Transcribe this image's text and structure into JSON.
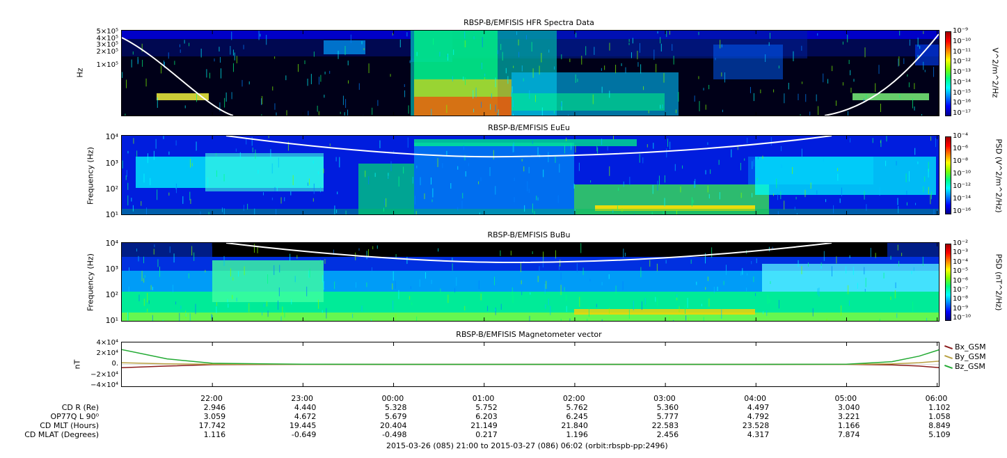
{
  "panels": [
    {
      "title": "RBSP-B/EMFISIS  HFR Spectra Data",
      "ylabel": "Hz",
      "yticks": [
        "5×10⁵",
        "4×10⁵",
        "3×10⁵",
        "2×10⁵",
        "1×10⁵"
      ],
      "colorbar_label": "V^2/m^2/Hz",
      "colorbar_ticks": [
        "10⁻⁹",
        "10⁻¹⁰",
        "10⁻¹¹",
        "10⁻¹²",
        "10⁻¹³",
        "10⁻¹⁴",
        "10⁻¹⁵",
        "10⁻¹⁶",
        "10⁻¹⁷"
      ]
    },
    {
      "title": "RBSP-B/EMFISIS  EuEu",
      "ylabel": "Frequency (Hz)",
      "yticks": [
        "10⁴",
        "10³",
        "10²",
        "10¹"
      ],
      "colorbar_label": "PSD (V^2/m^2/Hz)",
      "colorbar_ticks": [
        "10⁻⁴",
        "10⁻⁶",
        "10⁻⁸",
        "10⁻¹⁰",
        "10⁻¹²",
        "10⁻¹⁴",
        "10⁻¹⁶"
      ]
    },
    {
      "title": "RBSP-B/EMFISIS  BuBu",
      "ylabel": "Frequency (Hz)",
      "yticks": [
        "10⁴",
        "10³",
        "10²",
        "10¹"
      ],
      "colorbar_label": "PSD (nT^2/Hz)",
      "colorbar_ticks": [
        "10⁻²",
        "10⁻³",
        "10⁻⁴",
        "10⁻⁵",
        "10⁻⁶",
        "10⁻⁷",
        "10⁻⁸",
        "10⁻⁹",
        "10⁻¹⁰"
      ]
    },
    {
      "title": "RBSP-B/EMFISIS  Magnetometer vector",
      "ylabel": "nT",
      "yticks": [
        "4×10⁴",
        "2×10⁴",
        "0.",
        "−2×10⁴",
        "−4×10⁴"
      ]
    }
  ],
  "legend": [
    {
      "label": "Bx_GSM",
      "color": "#8b1a1a"
    },
    {
      "label": "By_GSM",
      "color": "#b8a040"
    },
    {
      "label": "Bz_GSM",
      "color": "#22aa33"
    }
  ],
  "time_ticks": [
    "22:00",
    "23:00",
    "00:00",
    "01:00",
    "02:00",
    "03:00",
    "04:00",
    "05:00",
    "06:00"
  ],
  "ephemeris": {
    "labels": [
      "CD R (Re)",
      "OP77Q L 90⁰",
      "CD MLT (Hours)",
      "CD MLAT (Degrees)"
    ],
    "rows": [
      [
        "2.946",
        "4.440",
        "5.328",
        "5.752",
        "5.762",
        "5.360",
        "4.497",
        "3.040",
        "1.102"
      ],
      [
        "3.059",
        "4.672",
        "5.679",
        "6.203",
        "6.245",
        "5.777",
        "4.792",
        "3.221",
        "1.058"
      ],
      [
        "17.742",
        "19.445",
        "20.404",
        "21.149",
        "21.840",
        "22.583",
        "23.528",
        "1.166",
        "8.849"
      ],
      [
        "1.116",
        "-0.649",
        "-0.498",
        "0.217",
        "1.196",
        "2.456",
        "4.317",
        "7.874",
        "5.109"
      ]
    ]
  },
  "footer": "2015-03-26 (085) 21:00 to 2015-03-27 (086) 06:02 (orbit:rbspb-pp:2496)",
  "chart_data": [
    {
      "type": "heatmap",
      "title": "RBSP-B/EMFISIS  HFR Spectra Data",
      "ylabel": "Hz",
      "colorbar_label": "V^2/m^2/Hz",
      "x_range": [
        "2015-03-26 21:00",
        "2015-03-27 06:02"
      ],
      "color_range": [
        1e-17,
        1e-09
      ],
      "overlay_line": "white"
    },
    {
      "type": "heatmap",
      "title": "RBSP-B/EMFISIS  EuEu",
      "ylabel": "Frequency (Hz)",
      "ylim": [
        10,
        10000
      ],
      "yscale": "log",
      "colorbar_label": "PSD (V^2/m^2/Hz)",
      "color_range": [
        1e-16,
        0.0001
      ],
      "overlay_line": "white"
    },
    {
      "type": "heatmap",
      "title": "RBSP-B/EMFISIS  BuBu",
      "ylabel": "Frequency (Hz)",
      "ylim": [
        10,
        10000
      ],
      "yscale": "log",
      "colorbar_label": "PSD (nT^2/Hz)",
      "color_range": [
        1e-10,
        0.01
      ],
      "overlay_line": "white"
    },
    {
      "type": "line",
      "title": "RBSP-B/EMFISIS  Magnetometer vector",
      "ylabel": "nT",
      "ylim": [
        -40000,
        40000
      ],
      "x_hours": [
        21.0,
        21.5,
        22.0,
        23.0,
        24.0,
        25.0,
        26.0,
        27.0,
        28.0,
        29.0,
        29.5,
        29.8,
        30.03
      ],
      "series": [
        {
          "name": "Bx_GSM",
          "color": "#8b1a1a",
          "values": [
            -6000,
            -3000,
            -500,
            0,
            0,
            0,
            0,
            0,
            0,
            0,
            -1000,
            -3000,
            -6000
          ]
        },
        {
          "name": "By_GSM",
          "color": "#b8a040",
          "values": [
            3000,
            1000,
            300,
            0,
            0,
            0,
            0,
            0,
            0,
            0,
            1000,
            3000,
            6000
          ]
        },
        {
          "name": "Bz_GSM",
          "color": "#22aa33",
          "values": [
            27000,
            10000,
            2000,
            300,
            0,
            0,
            0,
            0,
            0,
            300,
            5000,
            15000,
            27000
          ]
        }
      ]
    }
  ]
}
